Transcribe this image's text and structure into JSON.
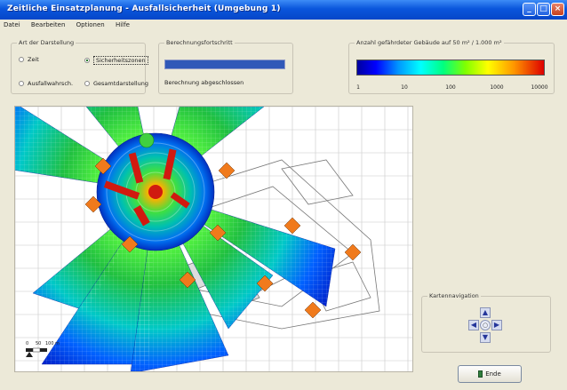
{
  "window": {
    "title": "Zeitliche Einsatzplanung - Ausfallsicherheit (Umgebung 1)",
    "minimize_label": "_",
    "maximize_label": "□",
    "close_label": "×"
  },
  "menu": {
    "items": [
      "Datei",
      "Bearbeiten",
      "Optionen",
      "Hilfe"
    ]
  },
  "display_group": {
    "title": "Art der Darstellung",
    "options": [
      {
        "label": "Zeit",
        "selected": false
      },
      {
        "label": "Sicherheitszonen",
        "selected": true
      },
      {
        "label": "Ausfallwahrsch.",
        "selected": false
      },
      {
        "label": "Gesamtdarstellung",
        "selected": false
      }
    ]
  },
  "progress_group": {
    "title": "Berechnungsfortschritt",
    "progress": 1.0,
    "status": "Berechnung abgeschlossen"
  },
  "legend_group": {
    "title": "Anzahl gefährdeter Gebäude auf 50 m² / 1.000 m²",
    "ticks": [
      "1",
      "10",
      "100",
      "1000",
      "10000"
    ]
  },
  "map": {
    "scale_labels": [
      "0",
      "50",
      "100 m"
    ]
  },
  "navigation_group": {
    "title": "Kartennavigation"
  },
  "footer": {
    "exit_label": "Ende"
  },
  "colors": {
    "accent": "#0a56dc",
    "progress": "#3058b8"
  }
}
